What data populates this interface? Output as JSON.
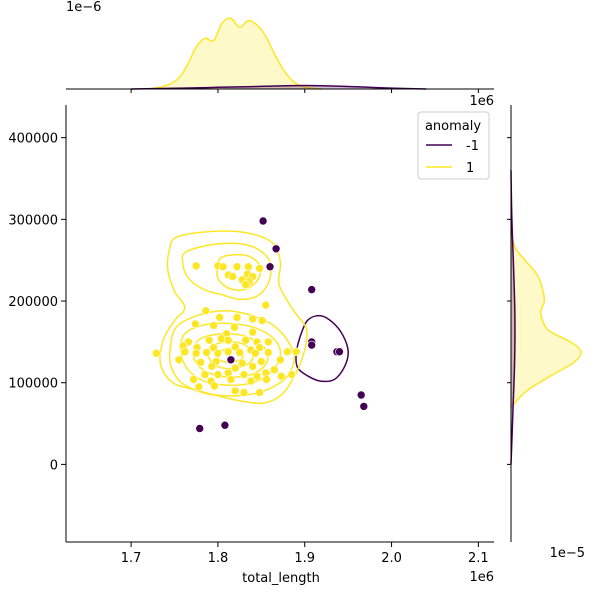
{
  "chart_data": {
    "type": "scatter",
    "variant": "jointplot-kde",
    "xlabel": "total_length",
    "ylabel": "",
    "xlim": [
      1625000,
      2118000
    ],
    "ylim": [
      -95000,
      440000
    ],
    "x_ticks": [
      1700000,
      1800000,
      1900000,
      2000000,
      2100000
    ],
    "x_tick_labels": [
      "1.7",
      "1.8",
      "1.9",
      "2.0",
      "2.1"
    ],
    "x_offset_label": "1e6",
    "y_ticks": [
      0,
      100000,
      200000,
      300000,
      400000
    ],
    "y_tick_labels": [
      "0",
      "100000",
      "200000",
      "300000",
      "400000"
    ],
    "top_marginal_offset_label": "1e−6",
    "top_marginal_axis_offset_label": "1e6",
    "right_marginal_offset_label": "1e−5",
    "grid": false,
    "legend": {
      "title": "anomaly",
      "placement": "top-right",
      "entries": [
        {
          "label": "-1",
          "color": "#440154"
        },
        {
          "label": "1",
          "color": "#fde725"
        }
      ]
    },
    "series": [
      {
        "name": "-1",
        "color": "#440154",
        "points": [
          [
            1852000,
            298000
          ],
          [
            1867000,
            264000
          ],
          [
            1860000,
            242000
          ],
          [
            1908000,
            214000
          ],
          [
            1908000,
            150000
          ],
          [
            1908000,
            146000
          ],
          [
            1937000,
            138000
          ],
          [
            1940000,
            138000
          ],
          [
            1815000,
            128000
          ],
          [
            1965000,
            85000
          ],
          [
            1968000,
            71000
          ],
          [
            1779000,
            44000
          ],
          [
            1808000,
            48000
          ]
        ]
      },
      {
        "name": "1",
        "color": "#fde725",
        "points": [
          [
            1775000,
            243000
          ],
          [
            1800000,
            243000
          ],
          [
            1806000,
            242000
          ],
          [
            1822000,
            242000
          ],
          [
            1835000,
            242000
          ],
          [
            1848000,
            240000
          ],
          [
            1812000,
            232000
          ],
          [
            1817000,
            230000
          ],
          [
            1834000,
            233000
          ],
          [
            1840000,
            230000
          ],
          [
            1828000,
            226000
          ],
          [
            1836000,
            224000
          ],
          [
            1832000,
            220000
          ],
          [
            1855000,
            195000
          ],
          [
            1786000,
            188000
          ],
          [
            1802000,
            180000
          ],
          [
            1822000,
            180000
          ],
          [
            1840000,
            178000
          ],
          [
            1851000,
            176000
          ],
          [
            1774000,
            172000
          ],
          [
            1795000,
            170000
          ],
          [
            1819000,
            168000
          ],
          [
            1810000,
            160000
          ],
          [
            1840000,
            162000
          ],
          [
            1766000,
            150000
          ],
          [
            1790000,
            152000
          ],
          [
            1804000,
            154000
          ],
          [
            1812000,
            152000
          ],
          [
            1832000,
            152000
          ],
          [
            1845000,
            150000
          ],
          [
            1858000,
            150000
          ],
          [
            1760000,
            145000
          ],
          [
            1776000,
            143000
          ],
          [
            1795000,
            143000
          ],
          [
            1820000,
            144000
          ],
          [
            1838000,
            140000
          ],
          [
            1848000,
            143000
          ],
          [
            1729000,
            136000
          ],
          [
            1762000,
            138000
          ],
          [
            1775000,
            136000
          ],
          [
            1787000,
            137000
          ],
          [
            1800000,
            136000
          ],
          [
            1812000,
            138000
          ],
          [
            1825000,
            137000
          ],
          [
            1843000,
            136000
          ],
          [
            1858000,
            137000
          ],
          [
            1880000,
            138000
          ],
          [
            1890000,
            138000
          ],
          [
            1755000,
            128000
          ],
          [
            1780000,
            125000
          ],
          [
            1798000,
            126000
          ],
          [
            1828000,
            124000
          ],
          [
            1850000,
            126000
          ],
          [
            1872000,
            128000
          ],
          [
            1793000,
            120000
          ],
          [
            1820000,
            118000
          ],
          [
            1840000,
            120000
          ],
          [
            1865000,
            116000
          ],
          [
            1785000,
            110000
          ],
          [
            1800000,
            110000
          ],
          [
            1812000,
            112000
          ],
          [
            1830000,
            110000
          ],
          [
            1845000,
            108000
          ],
          [
            1855000,
            112000
          ],
          [
            1873000,
            108000
          ],
          [
            1885000,
            110000
          ],
          [
            1772000,
            104000
          ],
          [
            1792000,
            102000
          ],
          [
            1815000,
            104000
          ],
          [
            1838000,
            102000
          ],
          [
            1856000,
            104000
          ],
          [
            1778000,
            95000
          ],
          [
            1796000,
            96000
          ],
          [
            1820000,
            90000
          ],
          [
            1830000,
            88000
          ],
          [
            1848000,
            88000
          ]
        ]
      }
    ],
    "kde_contours": [
      {
        "series": "-1",
        "color": "#440154",
        "levels": [
          [
            [
              1903000,
              176000
            ],
            [
              1918000,
              182000
            ],
            [
              1932000,
              174000
            ],
            [
              1944000,
              158000
            ],
            [
              1950000,
              138000
            ],
            [
              1946000,
              120000
            ],
            [
              1934000,
              104000
            ],
            [
              1918000,
              102000
            ],
            [
              1904000,
              108000
            ],
            [
              1892000,
              118000
            ],
            [
              1890000,
              134000
            ],
            [
              1894000,
              154000
            ]
          ]
        ]
      },
      {
        "series": "1",
        "color": "#fde725",
        "levels": [
          [
            [
              1752000,
              278000
            ],
            [
              1790000,
              285000
            ],
            [
              1830000,
              284000
            ],
            [
              1862000,
              272000
            ],
            [
              1872000,
              248000
            ],
            [
              1870000,
              222000
            ],
            [
              1880000,
              200000
            ],
            [
              1890000,
              184000
            ],
            [
              1902000,
              166000
            ],
            [
              1900000,
              140000
            ],
            [
              1890000,
              112000
            ],
            [
              1874000,
              86000
            ],
            [
              1852000,
              75000
            ],
            [
              1825000,
              78000
            ],
            [
              1800000,
              84000
            ],
            [
              1772000,
              92000
            ],
            [
              1748000,
              100000
            ],
            [
              1734000,
              122000
            ],
            [
              1737000,
              152000
            ],
            [
              1750000,
              176000
            ],
            [
              1762000,
              192000
            ],
            [
              1750000,
              212000
            ],
            [
              1742000,
              240000
            ],
            [
              1744000,
              262000
            ]
          ],
          [
            [
              1763000,
              260000
            ],
            [
              1800000,
              270000
            ],
            [
              1836000,
              268000
            ],
            [
              1858000,
              252000
            ],
            [
              1860000,
              228000
            ],
            [
              1848000,
              208000
            ],
            [
              1826000,
              202000
            ],
            [
              1804000,
              208000
            ],
            [
              1784000,
              214000
            ],
            [
              1766000,
              228000
            ],
            [
              1760000,
              244000
            ]
          ],
          [
            [
              1745000,
              142000
            ],
            [
              1752000,
              168000
            ],
            [
              1776000,
              182000
            ],
            [
              1808000,
              188000
            ],
            [
              1840000,
              182000
            ],
            [
              1864000,
              170000
            ],
            [
              1880000,
              152000
            ],
            [
              1888000,
              130000
            ],
            [
              1880000,
              108000
            ],
            [
              1862000,
              94000
            ],
            [
              1838000,
              86000
            ],
            [
              1808000,
              84000
            ],
            [
              1782000,
              88000
            ],
            [
              1758000,
              100000
            ],
            [
              1746000,
              120000
            ]
          ],
          [
            [
              1805000,
              254000
            ],
            [
              1832000,
              256000
            ],
            [
              1848000,
              244000
            ],
            [
              1846000,
              226000
            ],
            [
              1830000,
              214000
            ],
            [
              1812000,
              216000
            ],
            [
              1800000,
              228000
            ],
            [
              1800000,
              242000
            ]
          ],
          [
            [
              1757000,
              144000
            ],
            [
              1764000,
              162000
            ],
            [
              1790000,
              172000
            ],
            [
              1820000,
              172000
            ],
            [
              1846000,
              166000
            ],
            [
              1866000,
              152000
            ],
            [
              1872000,
              134000
            ],
            [
              1862000,
              114000
            ],
            [
              1840000,
              100000
            ],
            [
              1812000,
              97000
            ],
            [
              1784000,
              102000
            ],
            [
              1764000,
              118000
            ]
          ],
          [
            [
              1772000,
              140000
            ],
            [
              1780000,
              154000
            ],
            [
              1806000,
              160000
            ],
            [
              1834000,
              156000
            ],
            [
              1854000,
              142000
            ],
            [
              1856000,
              124000
            ],
            [
              1838000,
              110000
            ],
            [
              1810000,
              107000
            ],
            [
              1786000,
              114000
            ],
            [
              1774000,
              126000
            ]
          ],
          [
            [
              1788000,
              138000
            ],
            [
              1800000,
              148000
            ],
            [
              1824000,
              149000
            ],
            [
              1840000,
              138000
            ],
            [
              1836000,
              124000
            ],
            [
              1816000,
              117000
            ],
            [
              1796000,
              122000
            ]
          ],
          [
            [
              1800000,
              136000
            ],
            [
              1812000,
              142000
            ],
            [
              1826000,
              140000
            ],
            [
              1828000,
              130000
            ],
            [
              1814000,
              125000
            ],
            [
              1802000,
              128000
            ]
          ]
        ]
      }
    ],
    "marginal_kde_x": {
      "series": [
        {
          "name": "1",
          "color": "#fde725",
          "x": [
            1720000,
            1740000,
            1755000,
            1765000,
            1775000,
            1785000,
            1795000,
            1805000,
            1815000,
            1825000,
            1835000,
            1845000,
            1855000,
            1865000,
            1875000,
            1885000,
            1895000,
            1905000,
            1920000
          ],
          "density": [
            0.0,
            0.03,
            0.1,
            0.22,
            0.38,
            0.46,
            0.44,
            0.6,
            0.64,
            0.56,
            0.62,
            0.58,
            0.48,
            0.32,
            0.18,
            0.08,
            0.03,
            0.01,
            0.0
          ]
        },
        {
          "name": "-1",
          "color": "#440154",
          "x": [
            1700000,
            1760000,
            1800000,
            1840000,
            1880000,
            1920000,
            1960000,
            2000000,
            2040000
          ],
          "density": [
            0.0,
            0.008,
            0.015,
            0.022,
            0.03,
            0.03,
            0.02,
            0.008,
            0.0
          ]
        }
      ]
    },
    "marginal_kde_y": {
      "series": [
        {
          "name": "1",
          "color": "#fde725",
          "y": [
            70000,
            90000,
            110000,
            125000,
            138000,
            150000,
            165000,
            185000,
            200000,
            215000,
            232000,
            250000,
            265000,
            285000
          ],
          "density": [
            0.0,
            0.18,
            0.48,
            0.72,
            0.8,
            0.68,
            0.42,
            0.34,
            0.38,
            0.36,
            0.3,
            0.16,
            0.05,
            0.0
          ]
        },
        {
          "name": "-1",
          "color": "#440154",
          "y": [
            0,
            60000,
            120000,
            180000,
            240000,
            300000,
            360000
          ],
          "density": [
            0.0,
            0.02,
            0.04,
            0.045,
            0.03,
            0.01,
            0.0
          ]
        }
      ]
    }
  }
}
